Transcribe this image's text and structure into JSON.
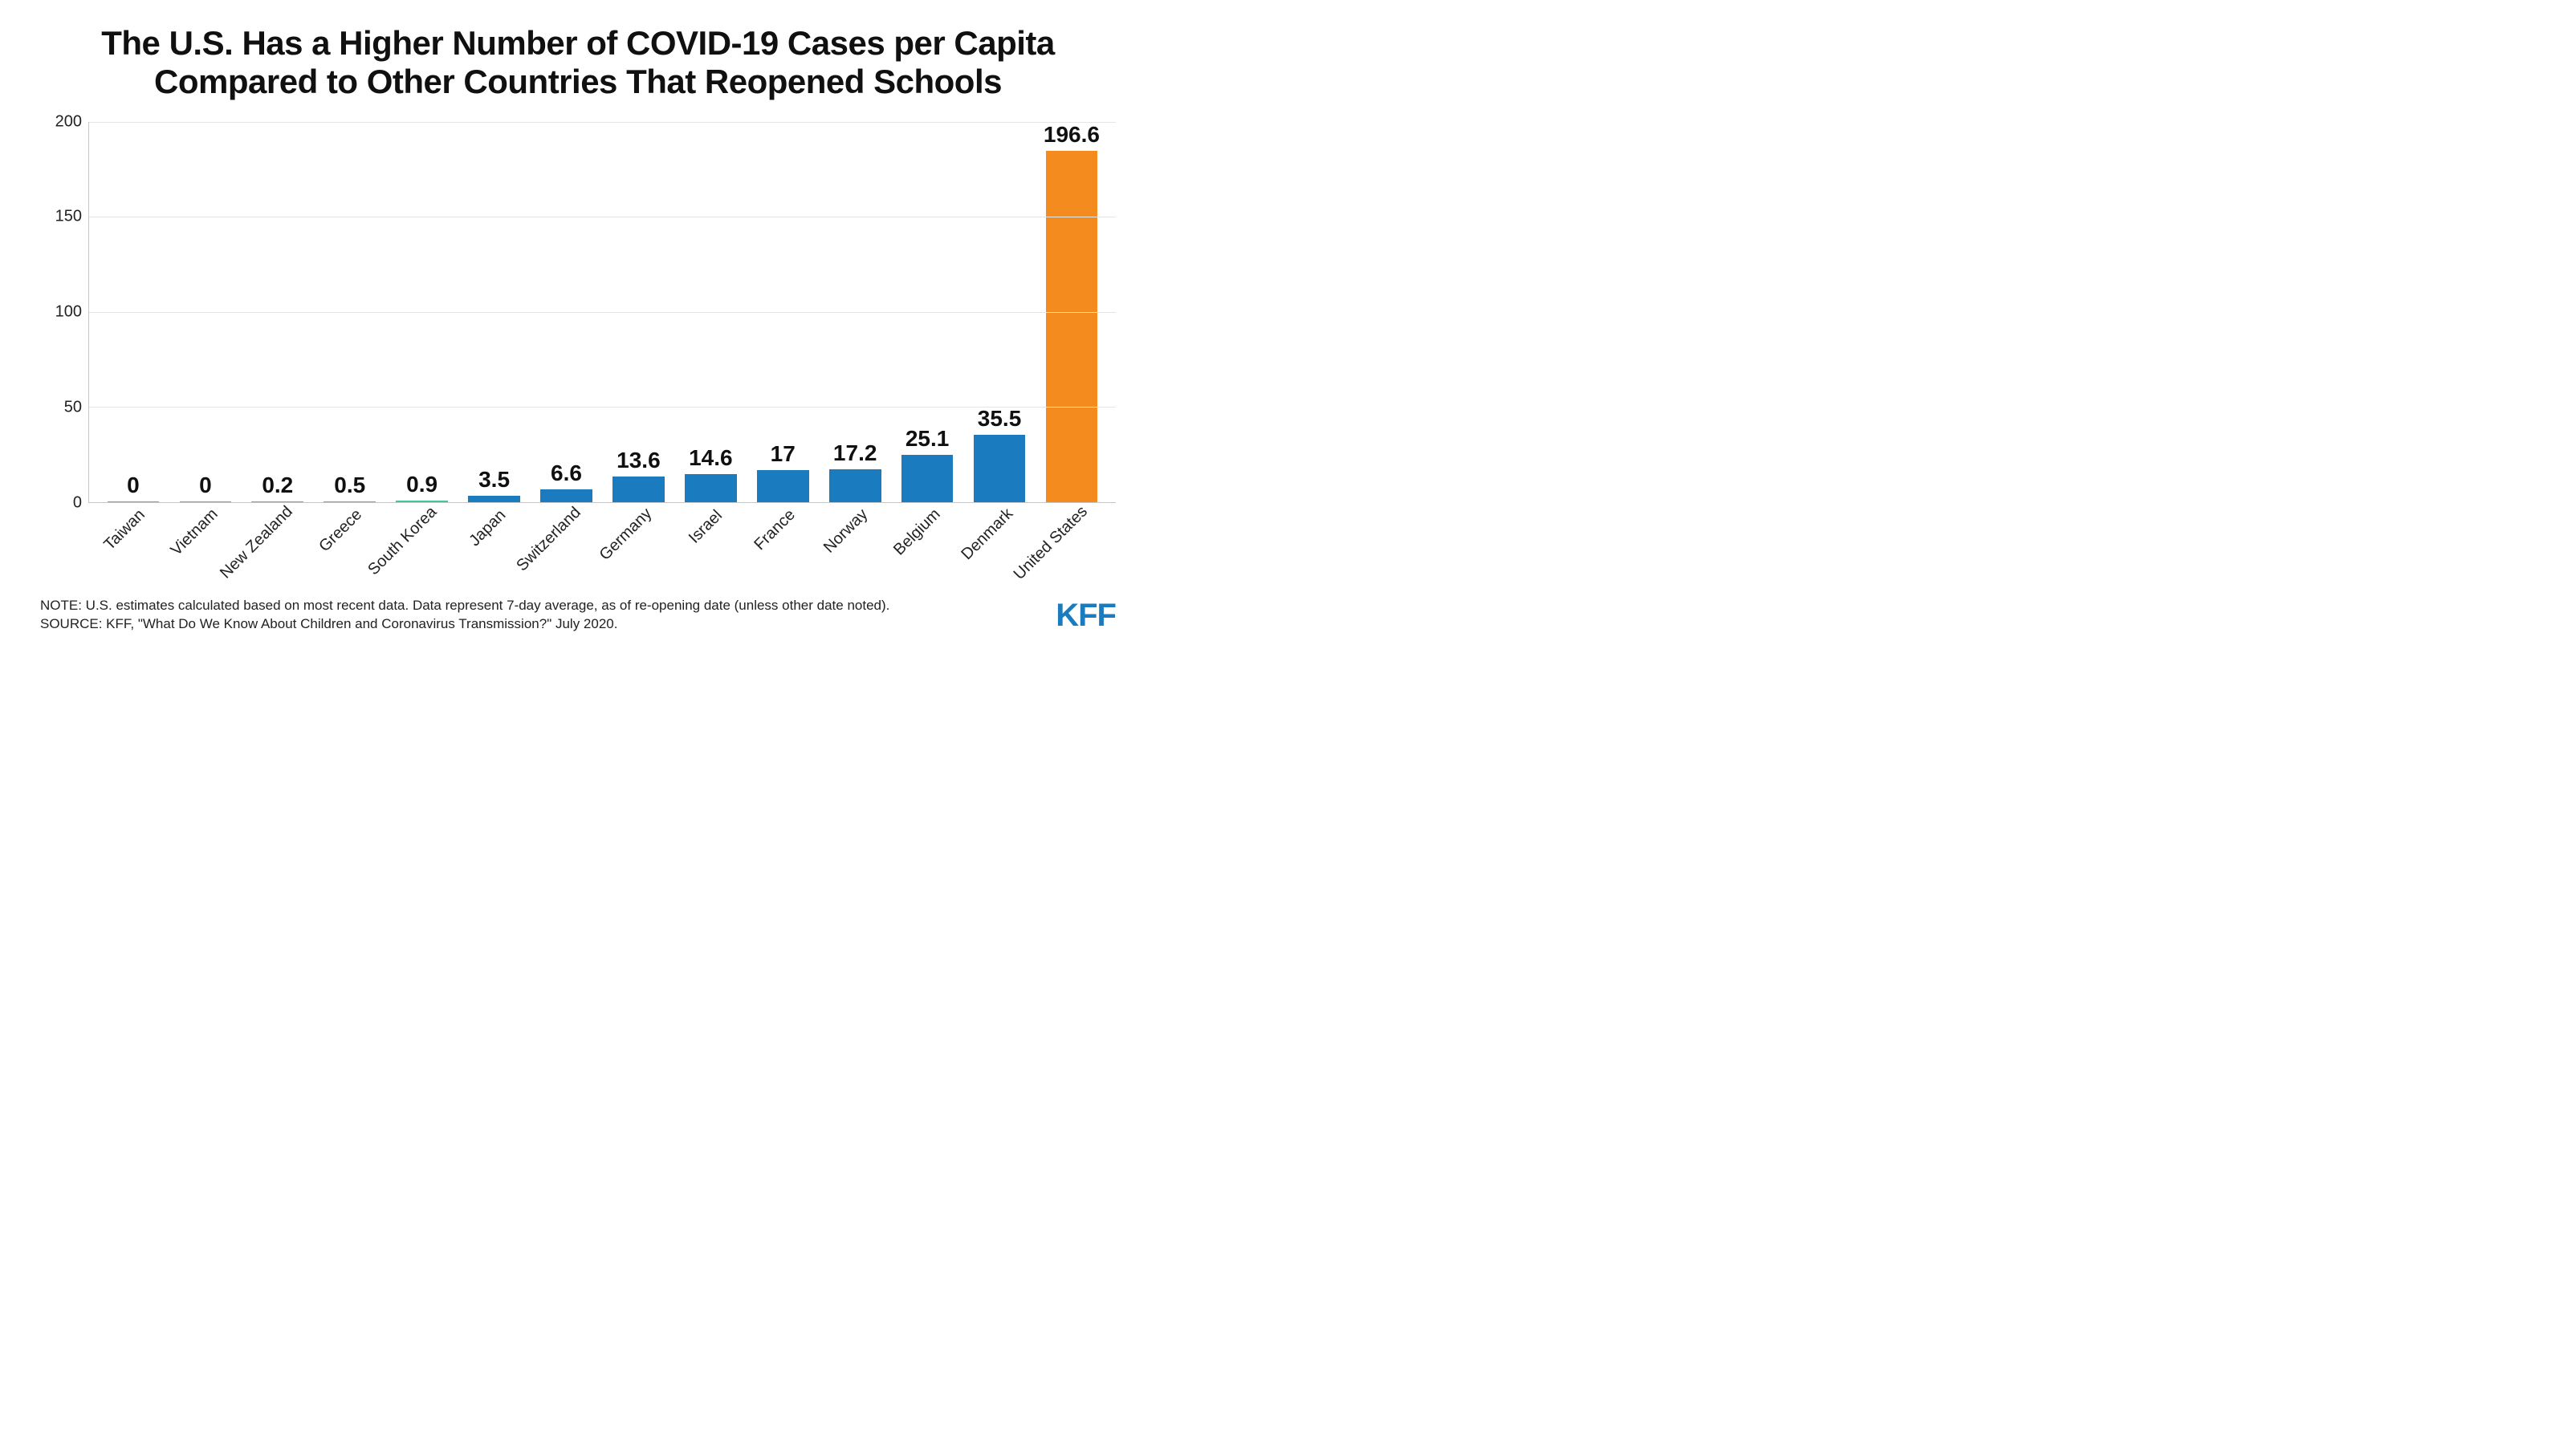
{
  "chart": {
    "type": "bar",
    "title": "The U.S. Has a Higher Number of COVID-19 Cases per Capita Compared to Other Countries That Reopened Schools",
    "title_fontsize": 42,
    "value_label_fontsize": 28,
    "axis_tick_fontsize": 20,
    "xlabel_fontsize": 20,
    "background_color": "#ffffff",
    "grid_color": "#e5e5e5",
    "axis_color": "#c7c7c7",
    "text_color": "#101010",
    "ylim": [
      0,
      200
    ],
    "yticks": [
      0,
      50,
      100,
      150,
      200
    ],
    "bar_width": 0.72,
    "categories": [
      "Taiwan",
      "Vietnam",
      "New Zealand",
      "Greece",
      "South Korea",
      "Japan",
      "Switzerland",
      "Germany",
      "Israel",
      "France",
      "Norway",
      "Belgium",
      "Denmark",
      "United States"
    ],
    "values": [
      0,
      0,
      0.2,
      0.5,
      0.9,
      3.5,
      6.6,
      13.6,
      14.6,
      17,
      17.2,
      25.1,
      35.5,
      196.6
    ],
    "value_labels": [
      "0",
      "0",
      "0.2",
      "0.5",
      "0.9",
      "3.5",
      "6.6",
      "13.6",
      "14.6",
      "17",
      "17.2",
      "25.1",
      "35.5",
      "196.6"
    ],
    "bar_colors": [
      "#3fc99a",
      "#3fc99a",
      "#3fc99a",
      "#3fc99a",
      "#3fc99a",
      "#1a7cbe",
      "#1a7cbe",
      "#1a7cbe",
      "#1a7cbe",
      "#1a7cbe",
      "#1a7cbe",
      "#1a7cbe",
      "#1a7cbe",
      "#f38b1e"
    ]
  },
  "footer": {
    "note": "NOTE: U.S. estimates calculated based on most recent data. Data represent 7-day average, as of re-opening date (unless other date noted).",
    "source": "SOURCE: KFF, \"What Do We Know About Children and Coronavirus Transmission?\" July 2020.",
    "note_fontsize": 17,
    "logo_text": "KFF",
    "logo_color": "#1a7cbe",
    "logo_fontsize": 40
  }
}
